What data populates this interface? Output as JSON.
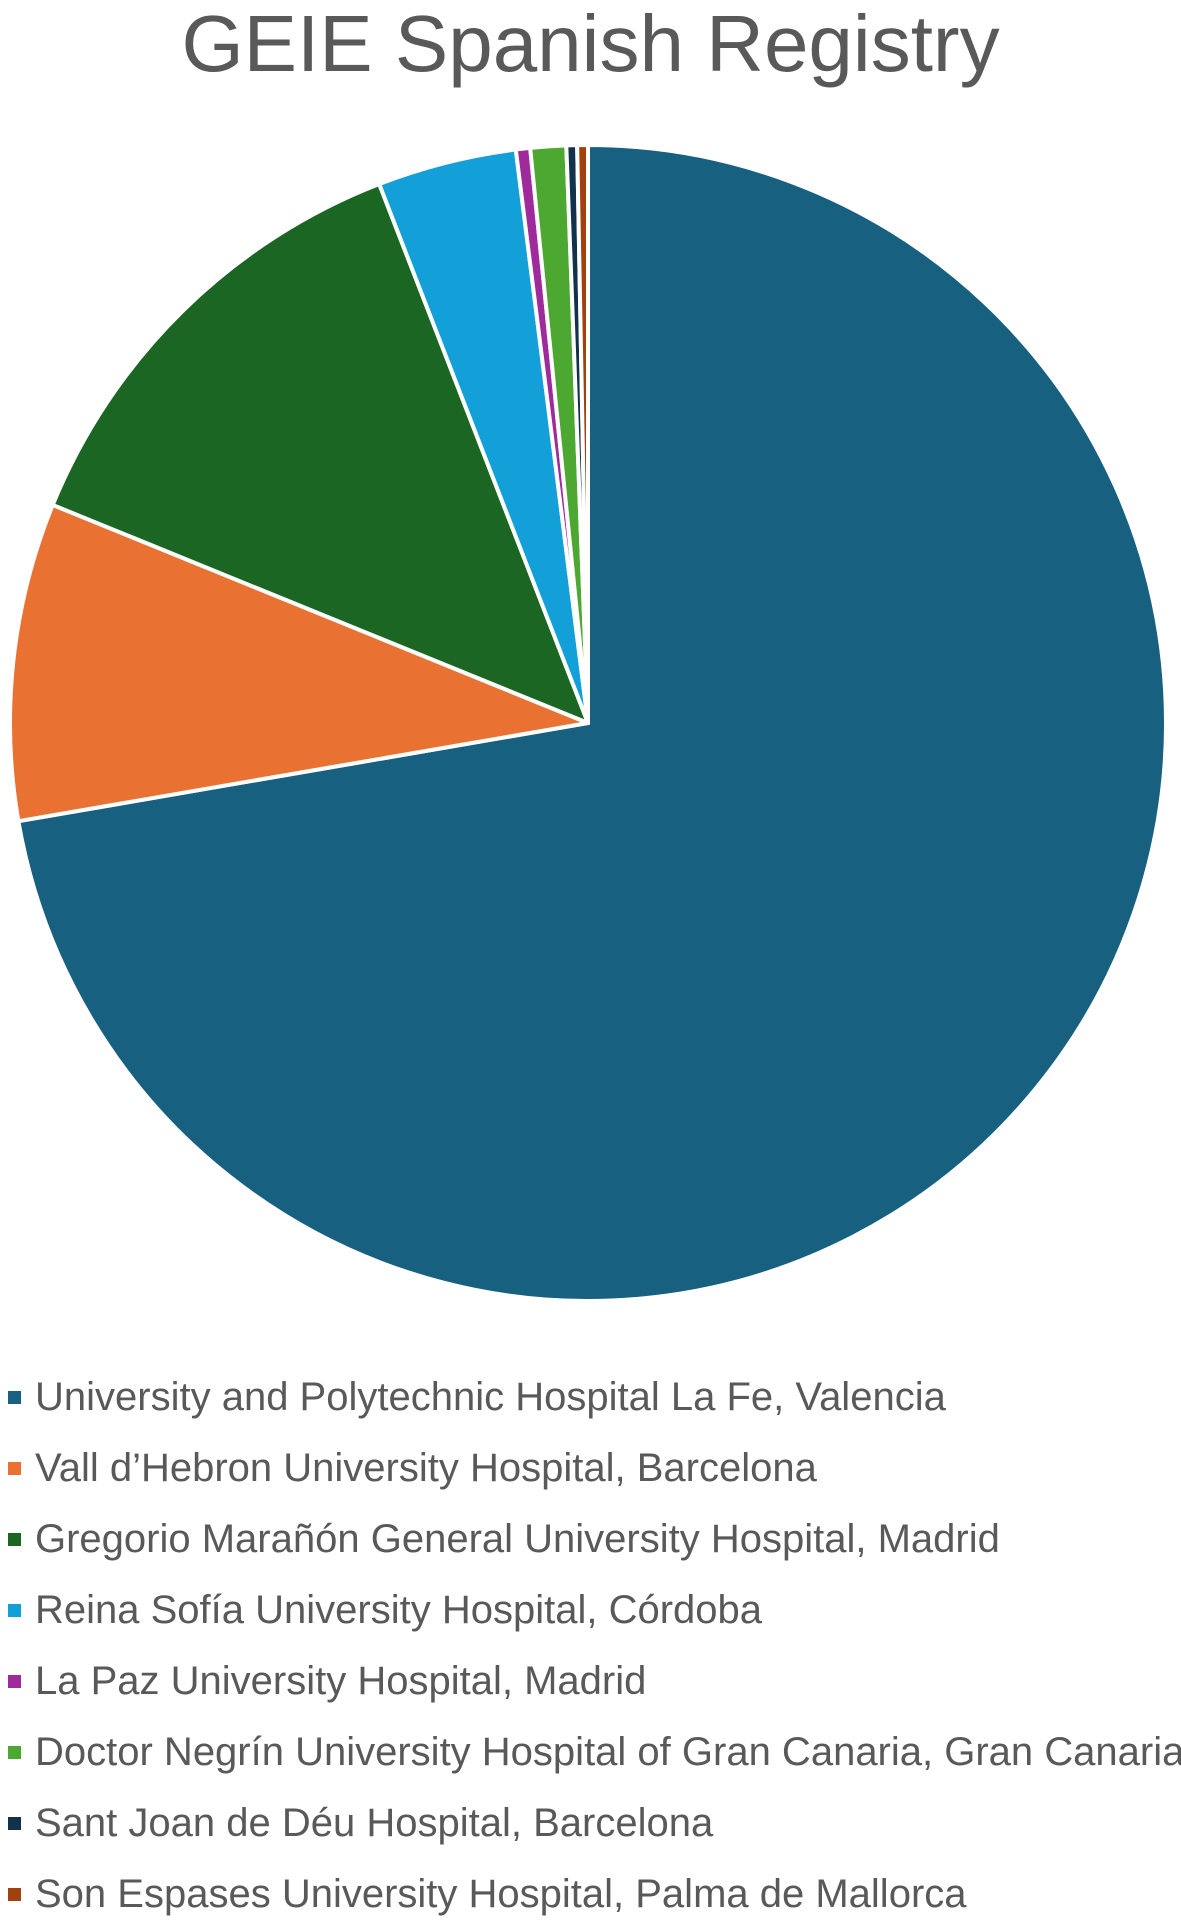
{
  "chart_data": {
    "type": "pie",
    "title": "GEIE Spanish Registry",
    "legend_position": "bottom",
    "slices": [
      {
        "label": "University and Polytechnic Hospital La Fe, Valencia",
        "value": 72.5,
        "color": "#17607F"
      },
      {
        "label": "Vall d’Hebron University Hospital, Barcelona",
        "value": 8.9,
        "color": "#E97233"
      },
      {
        "label": "Gregorio Marañón General University Hospital, Madrid",
        "value": 13.0,
        "color": "#1B6623"
      },
      {
        "label": "Reina Sofía University Hospital, Córdoba",
        "value": 3.9,
        "color": "#139FD8"
      },
      {
        "label": "La Paz University Hospital, Madrid",
        "value": 0.4,
        "color": "#9E2A9B"
      },
      {
        "label": "Doctor Negrín University Hospital of Gran Canaria, Gran Canaria",
        "value": 1.0,
        "color": "#4DA832"
      },
      {
        "label": "Sant Joan de Déu Hospital, Barcelona",
        "value": 0.3,
        "color": "#11324A"
      },
      {
        "label": "Son Espases University Hospital, Palma de Mallorca",
        "value": 0.3,
        "color": "#A3410E"
      }
    ]
  }
}
